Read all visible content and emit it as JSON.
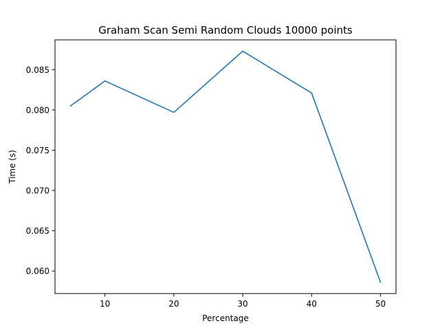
{
  "chart_data": {
    "type": "line",
    "title": "Graham Scan Semi Random Clouds 10000 points",
    "xlabel": "Percentage",
    "ylabel": "Time (s)",
    "x": [
      5,
      10,
      20,
      30,
      40,
      50
    ],
    "series": [
      {
        "values": [
          0.0805,
          0.0836,
          0.0797,
          0.0873,
          0.0821,
          0.0586
        ],
        "color": "#1f77b4"
      }
    ],
    "xlim": [
      2.75,
      52.25
    ],
    "ylim": [
      0.0572,
      0.0887
    ],
    "xticks": [
      10,
      20,
      30,
      40,
      50
    ],
    "xtick_labels": [
      "10",
      "20",
      "30",
      "40",
      "50"
    ],
    "yticks": [
      0.06,
      0.065,
      0.07,
      0.075,
      0.08,
      0.085
    ],
    "ytick_labels": [
      "0.060",
      "0.065",
      "0.070",
      "0.075",
      "0.080",
      "0.085"
    ],
    "grid": false,
    "legend": "none"
  }
}
